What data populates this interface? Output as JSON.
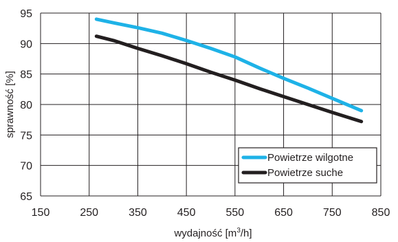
{
  "chart_data": {
    "type": "line",
    "xlabel_main": "wydajność [m",
    "xlabel_sup": "3",
    "xlabel_tail": "/h]",
    "ylabel": "sprawność [%]",
    "xlim": [
      150,
      850
    ],
    "ylim": [
      65,
      95
    ],
    "xticks": [
      150,
      250,
      350,
      450,
      550,
      650,
      750,
      850
    ],
    "yticks": [
      65,
      70,
      75,
      80,
      85,
      90,
      95
    ],
    "grid": true,
    "legend_position": "bottom-right",
    "series": [
      {
        "name": "Powietrze wilgotne",
        "color": "#1eb2e7",
        "x": [
          265,
          300,
          350,
          400,
          450,
          500,
          550,
          600,
          650,
          700,
          750,
          810
        ],
        "y": [
          94.0,
          93.4,
          92.6,
          91.7,
          90.5,
          89.2,
          87.8,
          86.0,
          84.3,
          82.7,
          81.0,
          79.0
        ]
      },
      {
        "name": "Powietrze suche",
        "color": "#231f20",
        "x": [
          265,
          300,
          350,
          400,
          450,
          500,
          550,
          600,
          650,
          700,
          750,
          810
        ],
        "y": [
          91.2,
          90.5,
          89.2,
          88.0,
          86.7,
          85.3,
          84.0,
          82.6,
          81.3,
          80.0,
          78.7,
          77.2
        ]
      }
    ]
  }
}
